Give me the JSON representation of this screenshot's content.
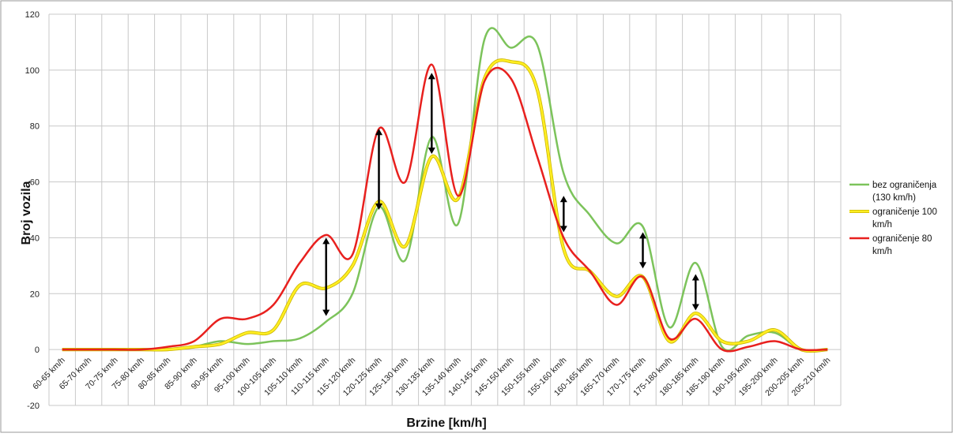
{
  "chart_data": {
    "type": "line",
    "xlabel": "Brzine [km/h]",
    "ylabel": "Broj vozila",
    "ylim": [
      -20,
      120
    ],
    "yticks": [
      -20,
      0,
      20,
      40,
      60,
      80,
      100,
      120
    ],
    "grid": true,
    "legend_position": "right",
    "categories": [
      "60-65 km/h",
      "65-70 km/h",
      "70-75 km/h",
      "75-80 km/h",
      "80-85 km/h",
      "85-90 km/h",
      "90-95 km/h",
      "95-100 km/h",
      "100-105 km/h",
      "105-110 km/h",
      "110-115 km/h",
      "115-120 km/h",
      "120-125 km/h",
      "125-130 km/h",
      "130-135 km/h",
      "135-140 km/h",
      "140-145 km/h",
      "145-150 km/h",
      "150-155 km/h",
      "155-160 km/h",
      "160-165 km/h",
      "165-170 km/h",
      "170-175 km/h",
      "175-180 km/h",
      "180-185 km/h",
      "185-190 km/h",
      "190-195 km/h",
      "195-200 km/h",
      "200-205 km/h",
      "205-210 km/h"
    ],
    "series": [
      {
        "name": "bez ograničenja (130 km/h)",
        "color": "#7cc35b",
        "values": [
          0,
          0,
          0,
          0,
          0,
          1,
          3,
          2,
          3,
          4,
          10,
          20,
          51,
          32,
          76,
          45,
          111,
          108,
          109,
          63,
          48,
          38,
          44,
          8,
          31,
          1,
          5,
          6,
          0,
          0
        ]
      },
      {
        "name": "ograničenje 100 km/h",
        "color": "#ffee22",
        "values": [
          0,
          0,
          0,
          0,
          0,
          1,
          2,
          6,
          7,
          23,
          22,
          30,
          53,
          37,
          69,
          54,
          97,
          103,
          93,
          36,
          28,
          19,
          26,
          3,
          13,
          3,
          3,
          7,
          0,
          0
        ]
      },
      {
        "name": "ograničenje 80 km/h",
        "color": "#e8201e",
        "values": [
          0,
          0,
          0,
          0,
          1,
          3,
          11,
          11,
          16,
          31,
          41,
          34,
          79,
          60,
          102,
          55,
          96,
          97,
          69,
          40,
          28,
          16,
          26,
          4,
          11,
          0,
          1,
          3,
          0,
          0
        ]
      }
    ],
    "arrows": [
      {
        "category": "110-115 km/h",
        "from": 12,
        "to": 40
      },
      {
        "category": "120-125 km/h",
        "from": 50,
        "to": 79
      },
      {
        "category": "130-135 km/h",
        "from": 70,
        "to": 99
      },
      {
        "category": "155-160 km/h",
        "from": 42,
        "to": 55
      },
      {
        "category": "170-175 km/h",
        "from": 29,
        "to": 42
      },
      {
        "category": "180-185 km/h",
        "from": 14,
        "to": 27
      }
    ]
  }
}
